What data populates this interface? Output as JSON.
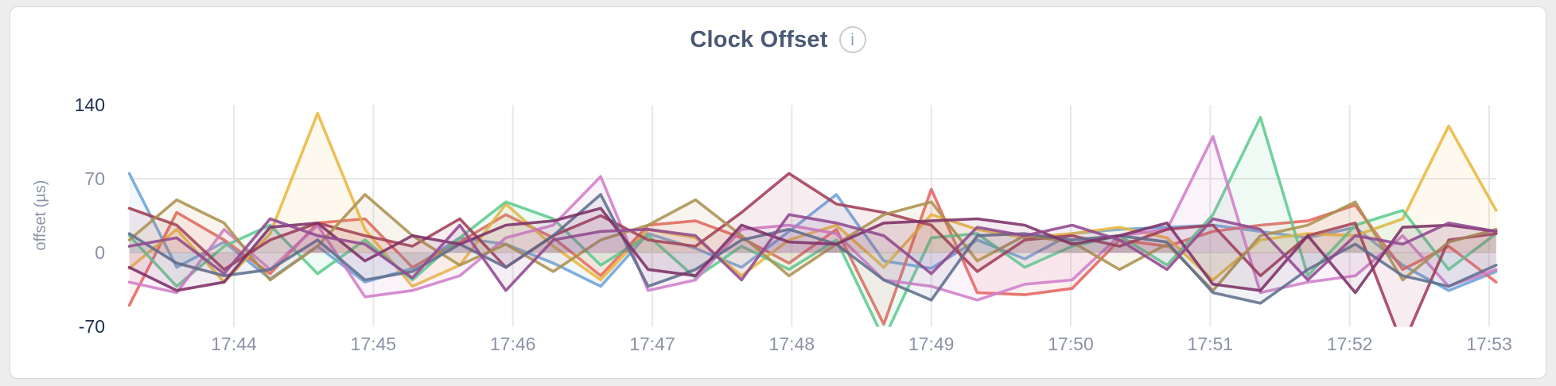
{
  "chart": {
    "info_glyph": "i"
  },
  "colors": {
    "page_bg": "#ededee",
    "card_bg": "#ffffff",
    "card_border": "#d8d9da",
    "title": "#4a5974",
    "tick": "#8b93a6",
    "tick_strong": "#20304f",
    "grid": "#e8e8e8",
    "info_circle": "#caccd1",
    "info_glyph": "#7f9dc2"
  },
  "chart_data": {
    "type": "line",
    "title": "Clock Offset",
    "xlabel": "",
    "ylabel": "offset (µs)",
    "legend": "none",
    "grid": true,
    "ylim": [
      -70,
      140
    ],
    "xlim_minutes": [
      43.25,
      53.05
    ],
    "yticks": [
      {
        "value": 140,
        "label": "140",
        "strong": true,
        "gridline": false
      },
      {
        "value": 70,
        "label": "70",
        "strong": false,
        "gridline": true
      },
      {
        "value": 0,
        "label": "0",
        "strong": false,
        "gridline": true
      },
      {
        "value": -70,
        "label": "-70",
        "strong": true,
        "gridline": false
      }
    ],
    "xticks": [
      {
        "minute": 44,
        "label": "17:44"
      },
      {
        "minute": 45,
        "label": "17:45"
      },
      {
        "minute": 46,
        "label": "17:46"
      },
      {
        "minute": 47,
        "label": "17:47"
      },
      {
        "minute": 48,
        "label": "17:48"
      },
      {
        "minute": 49,
        "label": "17:49"
      },
      {
        "minute": 50,
        "label": "17:50"
      },
      {
        "minute": 51,
        "label": "17:51"
      },
      {
        "minute": 52,
        "label": "17:52"
      },
      {
        "minute": 53,
        "label": "17:53"
      }
    ],
    "x_minutes": [
      43.25,
      43.59,
      43.93,
      44.26,
      44.6,
      44.94,
      45.28,
      45.62,
      45.95,
      46.29,
      46.63,
      46.97,
      47.31,
      47.64,
      47.98,
      48.32,
      48.66,
      49,
      49.33,
      49.67,
      50.01,
      50.35,
      50.69,
      51.02,
      51.36,
      51.7,
      52.04,
      52.38,
      52.71,
      53.05
    ],
    "series": [
      {
        "name": "series-blue",
        "color": "#6da4dc",
        "values": [
          75,
          -14,
          10,
          -25,
          6,
          -28,
          -15,
          14,
          8,
          -10,
          -32,
          18,
          4,
          -14,
          20,
          55,
          -8,
          -15,
          12,
          -6,
          18,
          22,
          24,
          26,
          20,
          14,
          24,
          -12,
          -36,
          -18
        ]
      },
      {
        "name": "series-red",
        "color": "#e5655e",
        "values": [
          -50,
          38,
          12,
          -20,
          28,
          32,
          -14,
          10,
          36,
          14,
          -22,
          26,
          30,
          14,
          -10,
          22,
          -68,
          60,
          -38,
          -40,
          -34,
          12,
          6,
          20,
          26,
          30,
          45,
          -16,
          6,
          -28
        ]
      },
      {
        "name": "series-gold",
        "color": "#eab740",
        "values": [
          -15,
          22,
          -28,
          18,
          132,
          22,
          -32,
          -12,
          46,
          6,
          -26,
          22,
          14,
          -22,
          12,
          26,
          -14,
          36,
          22,
          14,
          18,
          24,
          14,
          -26,
          12,
          18,
          16,
          32,
          120,
          40
        ]
      },
      {
        "name": "series-green",
        "color": "#5ecb8f",
        "values": [
          16,
          -32,
          6,
          26,
          -20,
          12,
          -26,
          14,
          48,
          32,
          -12,
          16,
          -24,
          6,
          -16,
          12,
          -82,
          14,
          18,
          -14,
          6,
          16,
          -12,
          36,
          128,
          -22,
          26,
          40,
          -16,
          18
        ]
      },
      {
        "name": "series-orchid",
        "color": "#d07ec9",
        "values": [
          -28,
          -38,
          22,
          -16,
          26,
          -42,
          -36,
          -22,
          14,
          26,
          72,
          -36,
          -26,
          22,
          26,
          18,
          -26,
          -32,
          -45,
          -30,
          -26,
          16,
          22,
          110,
          -38,
          -28,
          -22,
          16,
          -32,
          -16
        ]
      },
      {
        "name": "series-maroon",
        "color": "#a33c57",
        "values": [
          42,
          26,
          -16,
          12,
          28,
          16,
          6,
          32,
          -14,
          16,
          35,
          12,
          6,
          38,
          75,
          46,
          38,
          26,
          -18,
          12,
          16,
          6,
          22,
          26,
          -22,
          16,
          28,
          -88,
          12,
          18
        ]
      },
      {
        "name": "series-olive",
        "color": "#ac9251",
        "values": [
          12,
          50,
          28,
          -26,
          6,
          55,
          16,
          -12,
          8,
          -18,
          12,
          26,
          50,
          16,
          -22,
          8,
          36,
          48,
          -8,
          16,
          10,
          -16,
          8,
          -36,
          16,
          26,
          48,
          -26,
          10,
          22
        ]
      },
      {
        "name": "series-slate",
        "color": "#5f6f8d",
        "values": [
          18,
          -10,
          -22,
          -16,
          12,
          -26,
          -18,
          8,
          -14,
          16,
          55,
          -32,
          -16,
          12,
          22,
          8,
          -26,
          -45,
          16,
          18,
          12,
          16,
          10,
          -38,
          -48,
          -16,
          8,
          -22,
          -32,
          -12
        ]
      },
      {
        "name": "series-plum",
        "color": "#7c3067",
        "values": [
          -14,
          -36,
          -28,
          24,
          28,
          -8,
          16,
          8,
          26,
          30,
          42,
          -16,
          -22,
          26,
          10,
          8,
          28,
          30,
          32,
          26,
          8,
          16,
          28,
          -30,
          -36,
          16,
          -38,
          24,
          26,
          20
        ]
      },
      {
        "name": "series-violet",
        "color": "#91498f",
        "values": [
          6,
          14,
          -20,
          32,
          16,
          8,
          -24,
          26,
          -36,
          12,
          20,
          22,
          16,
          -26,
          36,
          28,
          16,
          -20,
          24,
          16,
          26,
          12,
          -16,
          32,
          22,
          -26,
          16,
          8,
          28,
          20
        ]
      }
    ]
  }
}
